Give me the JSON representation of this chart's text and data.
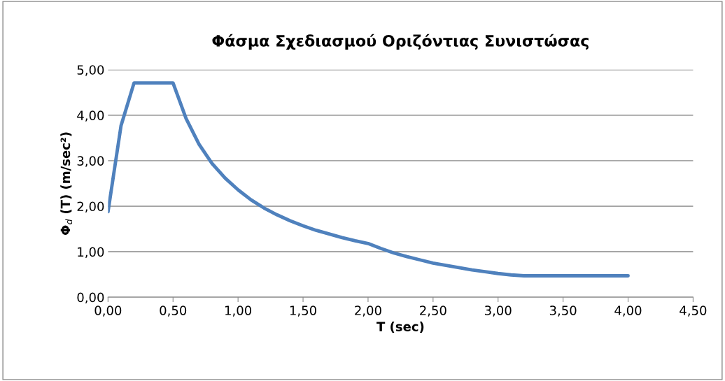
{
  "chart_data": {
    "type": "line",
    "title": "Φάσμα Σχεδιασμού Οριζόντιας Συνιστώσας",
    "xlabel": "T (sec)",
    "ylabel": "Φ$_{d}$ (T) (m/sec²)",
    "x": [
      0,
      0.1,
      0.2,
      0.3,
      0.4,
      0.5,
      0.6,
      0.7,
      0.8,
      0.9,
      1.0,
      1.1,
      1.2,
      1.3,
      1.4,
      1.5,
      1.6,
      1.7,
      1.8,
      1.9,
      2.0,
      2.1,
      2.2,
      2.3,
      2.4,
      2.5,
      2.6,
      2.7,
      2.8,
      2.9,
      3.0,
      3.1,
      3.2,
      3.3,
      3.4,
      3.5,
      3.6,
      3.7,
      3.8,
      3.9,
      4.0
    ],
    "series": [
      {
        "color": "#4f81bd",
        "values": [
          1.88,
          3.77,
          4.71,
          4.71,
          4.71,
          4.71,
          3.93,
          3.36,
          2.94,
          2.62,
          2.36,
          2.14,
          1.96,
          1.81,
          1.68,
          1.57,
          1.47,
          1.39,
          1.31,
          1.24,
          1.18,
          1.07,
          0.97,
          0.89,
          0.82,
          0.75,
          0.7,
          0.65,
          0.6,
          0.56,
          0.52,
          0.49,
          0.47,
          0.47,
          0.47,
          0.47,
          0.47,
          0.47,
          0.47,
          0.47,
          0.47
        ]
      }
    ],
    "xlim": [
      0,
      4.5
    ],
    "ylim": [
      0,
      5
    ],
    "xticks": [
      {
        "value": 0,
        "label": "0,00"
      },
      {
        "value": 0.5,
        "label": "0,50"
      },
      {
        "value": 1,
        "label": "1,00"
      },
      {
        "value": 1.5,
        "label": "1,50"
      },
      {
        "value": 2,
        "label": "2,00"
      },
      {
        "value": 2.5,
        "label": "2,50"
      },
      {
        "value": 3,
        "label": "3,00"
      },
      {
        "value": 3.5,
        "label": "3,50"
      },
      {
        "value": 4,
        "label": "4,00"
      },
      {
        "value": 4.5,
        "label": "4,50"
      }
    ],
    "yticks": [
      {
        "value": 0,
        "label": "0,00"
      },
      {
        "value": 1,
        "label": "1,00"
      },
      {
        "value": 2,
        "label": "2,00"
      },
      {
        "value": 3,
        "label": "3,00"
      },
      {
        "value": 4,
        "label": "4,00"
      },
      {
        "value": 5,
        "label": "5,00"
      }
    ],
    "grid": "y",
    "marker": "none",
    "line_style": "solid"
  }
}
